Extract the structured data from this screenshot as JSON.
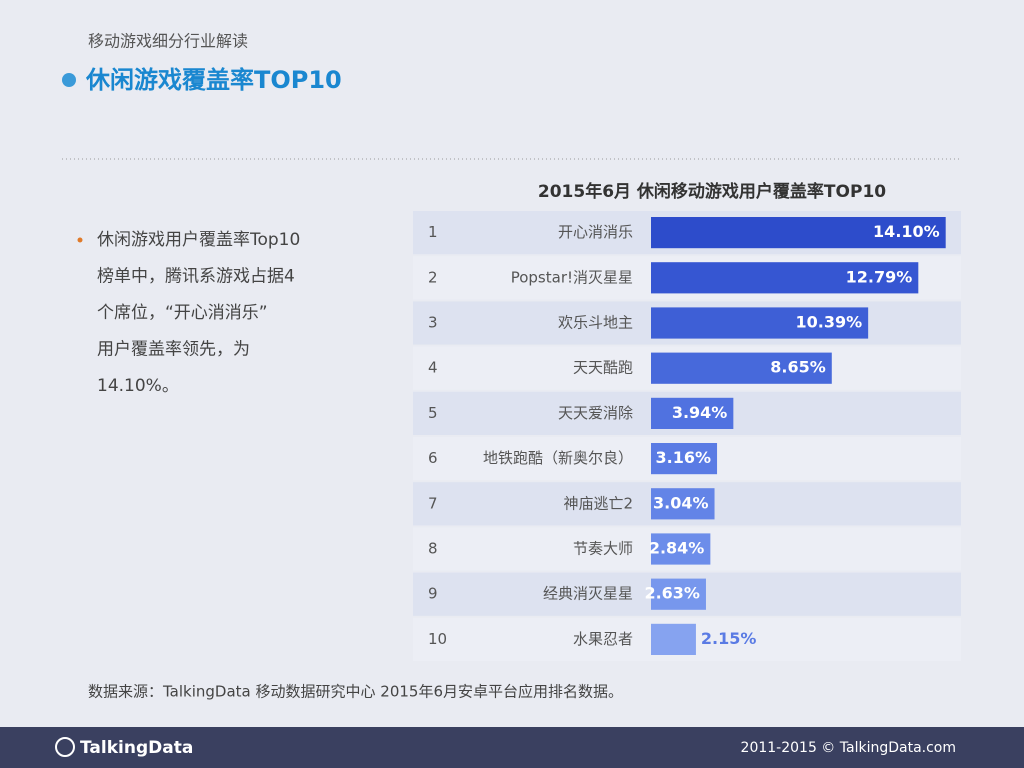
{
  "header": {
    "subtitle": "移动游戏细分行业解读",
    "title": "休闲游戏覆盖率TOP10"
  },
  "bullet_lines": [
    "休闲游戏用户覆盖率Top10",
    "榜单中，腾讯系游戏占据4",
    "个席位，“开心消消乐”",
    "用户覆盖率领先，为",
    "14.10%。"
  ],
  "chart_data": {
    "type": "hbar",
    "title": "2015年6月 休闲移动游戏用户覆盖率TOP10",
    "ranks": [
      1,
      2,
      3,
      4,
      5,
      6,
      7,
      8,
      9,
      10
    ],
    "categories": [
      "开心消消乐",
      "Popstar!消灭星星",
      "欢乐斗地主",
      "天天酷跑",
      "天天爱消除",
      "地铁跑酷（新奥尔良）",
      "神庙逃亡2",
      "节奏大师",
      "经典消灭星星",
      "水果忍者"
    ],
    "values": [
      14.1,
      12.79,
      10.39,
      8.65,
      3.94,
      3.16,
      3.04,
      2.84,
      2.63,
      2.15
    ],
    "value_labels": [
      "14.10%",
      "12.79%",
      "10.39%",
      "8.65%",
      "3.94%",
      "3.16%",
      "3.04%",
      "2.84%",
      "2.63%",
      "2.15%"
    ],
    "colors": [
      "#2d4ccb",
      "#3656d2",
      "#3e5fd6",
      "#4769db",
      "#5072e0",
      "#5a7be4",
      "#6384e7",
      "#6c8dea",
      "#7797ed",
      "#86a3f0"
    ]
  },
  "source": "数据来源：TalkingData 移动数据研究中心 2015年6月安卓平台应用排名数据。",
  "footer": {
    "logo": "TalkingData",
    "copyright": "2011-2015 © TalkingData.com"
  }
}
